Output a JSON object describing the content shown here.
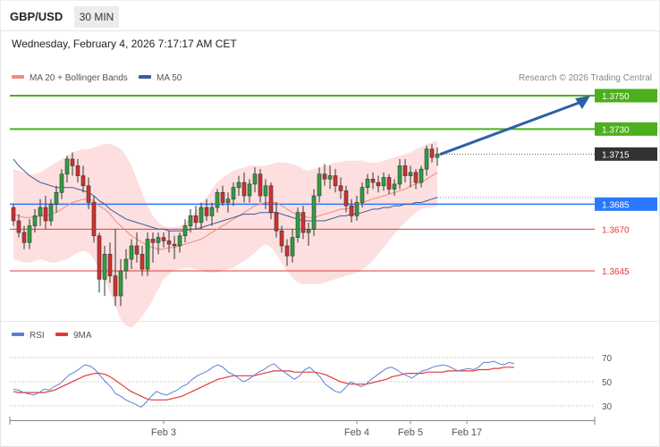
{
  "header": {
    "symbol": "GBP/USD",
    "interval": "30 MIN",
    "datetime": "Wednesday, February 4, 2026 7:17:17 AM CET",
    "credit": "Research © 2026 Trading Central"
  },
  "legend": {
    "main": [
      {
        "label": "MA 20 + Bollinger Bands",
        "color": "#f28b82"
      },
      {
        "label": "MA 50",
        "color": "#3a5d9c"
      }
    ],
    "rsi": [
      {
        "label": "RSI",
        "color": "#5b7fd6"
      },
      {
        "label": "9MA",
        "color": "#e53935"
      }
    ]
  },
  "chart_data": {
    "type": "candlestick",
    "ylim": [
      1.358,
      1.3775
    ],
    "levels": [
      {
        "label": "1.3750",
        "value": 1.375,
        "color": "#4caf1c",
        "kind": "resistance"
      },
      {
        "label": "1.3730",
        "value": 1.373,
        "color": "#4caf1c",
        "kind": "resistance"
      },
      {
        "label": "1.3715",
        "value": 1.3715,
        "color": "#333333",
        "kind": "last"
      },
      {
        "label": "1.3685",
        "value": 1.3685,
        "color": "#2979ff",
        "kind": "pivot"
      },
      {
        "label": "1.3670",
        "value": 1.367,
        "color": "#e53935",
        "kind": "support"
      },
      {
        "label": "1.3645",
        "value": 1.3645,
        "color": "#e53935",
        "kind": "support"
      }
    ],
    "forecast_arrow": {
      "from": 1.3715,
      "to": 1.375
    },
    "candles": [
      [
        1.3683,
        1.3685,
        1.3672,
        1.3675
      ],
      [
        1.3675,
        1.3679,
        1.3665,
        1.3668
      ],
      [
        1.3668,
        1.3672,
        1.3658,
        1.3662
      ],
      [
        1.3662,
        1.3676,
        1.3658,
        1.3672
      ],
      [
        1.3672,
        1.3682,
        1.3668,
        1.3678
      ],
      [
        1.3678,
        1.3688,
        1.3672,
        1.3683
      ],
      [
        1.3683,
        1.369,
        1.367,
        1.3675
      ],
      [
        1.3675,
        1.3688,
        1.3672,
        1.3685
      ],
      [
        1.3685,
        1.3696,
        1.368,
        1.3692
      ],
      [
        1.3692,
        1.3706,
        1.3688,
        1.3703
      ],
      [
        1.3703,
        1.3714,
        1.3698,
        1.3712
      ],
      [
        1.3712,
        1.3716,
        1.3702,
        1.3708
      ],
      [
        1.3708,
        1.3712,
        1.3698,
        1.3702
      ],
      [
        1.3702,
        1.3708,
        1.3692,
        1.3696
      ],
      [
        1.3696,
        1.3701,
        1.3682,
        1.3686
      ],
      [
        1.3686,
        1.369,
        1.3662,
        1.3666
      ],
      [
        1.3666,
        1.3668,
        1.3632,
        1.364
      ],
      [
        1.364,
        1.366,
        1.363,
        1.3655
      ],
      [
        1.3655,
        1.3662,
        1.3638,
        1.3642
      ],
      [
        1.3642,
        1.367,
        1.3624,
        1.363
      ],
      [
        1.363,
        1.3652,
        1.3624,
        1.3645
      ],
      [
        1.3645,
        1.3658,
        1.364,
        1.3652
      ],
      [
        1.3652,
        1.3664,
        1.3646,
        1.366
      ],
      [
        1.366,
        1.3668,
        1.365,
        1.3655
      ],
      [
        1.3655,
        1.366,
        1.3642,
        1.3646
      ],
      [
        1.3646,
        1.3668,
        1.3642,
        1.3664
      ],
      [
        1.3664,
        1.3668,
        1.365,
        1.3662
      ],
      [
        1.3662,
        1.3668,
        1.3655,
        1.3665
      ],
      [
        1.3665,
        1.3668,
        1.3659,
        1.3663
      ],
      [
        1.3663,
        1.3669,
        1.3656,
        1.3661
      ],
      [
        1.3661,
        1.3666,
        1.3652,
        1.366
      ],
      [
        1.366,
        1.3668,
        1.3656,
        1.3666
      ],
      [
        1.3666,
        1.3676,
        1.3662,
        1.3672
      ],
      [
        1.3672,
        1.3682,
        1.3668,
        1.3678
      ],
      [
        1.3678,
        1.3684,
        1.367,
        1.3674
      ],
      [
        1.3674,
        1.3686,
        1.367,
        1.3683
      ],
      [
        1.3683,
        1.3688,
        1.3675,
        1.3678
      ],
      [
        1.3678,
        1.3686,
        1.3672,
        1.3683
      ],
      [
        1.3683,
        1.3694,
        1.368,
        1.3692
      ],
      [
        1.3692,
        1.3696,
        1.3684,
        1.3686
      ],
      [
        1.3686,
        1.3692,
        1.368,
        1.3688
      ],
      [
        1.3688,
        1.3698,
        1.3684,
        1.3695
      ],
      [
        1.3695,
        1.3702,
        1.369,
        1.3698
      ],
      [
        1.3698,
        1.3704,
        1.3686,
        1.369
      ],
      [
        1.369,
        1.37,
        1.3686,
        1.3697
      ],
      [
        1.3697,
        1.3707,
        1.3692,
        1.3703
      ],
      [
        1.3703,
        1.3706,
        1.3686,
        1.369
      ],
      [
        1.369,
        1.37,
        1.3682,
        1.3696
      ],
      [
        1.3696,
        1.3698,
        1.3676,
        1.368
      ],
      [
        1.368,
        1.3686,
        1.3665,
        1.3669
      ],
      [
        1.3669,
        1.3672,
        1.3656,
        1.366
      ],
      [
        1.366,
        1.3664,
        1.3648,
        1.3654
      ],
      [
        1.3654,
        1.367,
        1.365,
        1.3665
      ],
      [
        1.3665,
        1.3683,
        1.3662,
        1.368
      ],
      [
        1.368,
        1.3684,
        1.3664,
        1.3668
      ],
      [
        1.3668,
        1.3674,
        1.366,
        1.367
      ],
      [
        1.367,
        1.3694,
        1.3666,
        1.369
      ],
      [
        1.369,
        1.3707,
        1.3686,
        1.3703
      ],
      [
        1.3703,
        1.3709,
        1.3696,
        1.37
      ],
      [
        1.37,
        1.3708,
        1.3694,
        1.3702
      ],
      [
        1.3702,
        1.3706,
        1.3692,
        1.3696
      ],
      [
        1.3696,
        1.3701,
        1.3688,
        1.3693
      ],
      [
        1.3693,
        1.3696,
        1.368,
        1.3684
      ],
      [
        1.3684,
        1.3688,
        1.3674,
        1.3678
      ],
      [
        1.3678,
        1.369,
        1.3675,
        1.3686
      ],
      [
        1.3686,
        1.3698,
        1.3683,
        1.3695
      ],
      [
        1.3695,
        1.3703,
        1.3691,
        1.37
      ],
      [
        1.37,
        1.3704,
        1.3694,
        1.3698
      ],
      [
        1.3698,
        1.3702,
        1.3692,
        1.3696
      ],
      [
        1.3696,
        1.3704,
        1.3693,
        1.3701
      ],
      [
        1.3701,
        1.3703,
        1.3691,
        1.3694
      ],
      [
        1.3694,
        1.37,
        1.369,
        1.3697
      ],
      [
        1.3697,
        1.3712,
        1.3694,
        1.3708
      ],
      [
        1.3708,
        1.3712,
        1.3698,
        1.3702
      ],
      [
        1.3702,
        1.3708,
        1.3695,
        1.3704
      ],
      [
        1.3704,
        1.3706,
        1.3694,
        1.3698
      ],
      [
        1.3698,
        1.3708,
        1.3695,
        1.3706
      ],
      [
        1.3706,
        1.372,
        1.3702,
        1.3718
      ],
      [
        1.3718,
        1.3721,
        1.371,
        1.3713
      ],
      [
        1.3713,
        1.3719,
        1.3708,
        1.3715
      ]
    ],
    "ma20": [
      1.3679,
      1.3678,
      1.3677,
      1.3677,
      1.3677,
      1.3678,
      1.3678,
      1.3679,
      1.368,
      1.3682,
      1.3684,
      1.3686,
      1.3687,
      1.3688,
      1.3688,
      1.3687,
      1.3684,
      1.3682,
      1.3679,
      1.3675,
      1.3672,
      1.3669,
      1.3666,
      1.3664,
      1.3662,
      1.366,
      1.3659,
      1.3658,
      1.3658,
      1.3659,
      1.3659,
      1.366,
      1.3661,
      1.3662,
      1.3663,
      1.3664,
      1.3666,
      1.3668,
      1.367,
      1.3672,
      1.3674,
      1.3676,
      1.3678,
      1.368,
      1.3682,
      1.3684,
      1.3685,
      1.3686,
      1.3686,
      1.3686,
      1.3684,
      1.3682,
      1.368,
      1.3679,
      1.3678,
      1.3677,
      1.3677,
      1.3678,
      1.3679,
      1.368,
      1.3681,
      1.3682,
      1.3682,
      1.3683,
      1.3684,
      1.3686,
      1.3687,
      1.3688,
      1.3689,
      1.369,
      1.3691,
      1.3692,
      1.3693,
      1.3694,
      1.3696,
      1.3697,
      1.3698,
      1.37,
      1.3702,
      1.3704
    ],
    "bb_upper": [
      1.3706,
      1.3705,
      1.3704,
      1.3703,
      1.3703,
      1.3704,
      1.3706,
      1.3708,
      1.371,
      1.3712,
      1.3714,
      1.3716,
      1.3717,
      1.3718,
      1.3718,
      1.3719,
      1.372,
      1.3721,
      1.3721,
      1.372,
      1.3718,
      1.3714,
      1.3708,
      1.37,
      1.3692,
      1.3684,
      1.3678,
      1.3674,
      1.3672,
      1.3671,
      1.3671,
      1.3672,
      1.3674,
      1.3677,
      1.3681,
      1.3685,
      1.3689,
      1.3694,
      1.3698,
      1.3701,
      1.3703,
      1.3705,
      1.3706,
      1.3707,
      1.3708,
      1.3708,
      1.3708,
      1.3708,
      1.3709,
      1.371,
      1.371,
      1.371,
      1.3709,
      1.3708,
      1.3706,
      1.3705,
      1.3706,
      1.3707,
      1.3708,
      1.3709,
      1.371,
      1.371,
      1.3711,
      1.3711,
      1.3711,
      1.3711,
      1.371,
      1.371,
      1.371,
      1.3711,
      1.3712,
      1.3713,
      1.3714,
      1.3715,
      1.3716,
      1.3718,
      1.3719,
      1.3721,
      1.3722,
      1.3723
    ],
    "bb_lower": [
      1.3652,
      1.3651,
      1.365,
      1.365,
      1.3651,
      1.3652,
      1.3651,
      1.365,
      1.365,
      1.3651,
      1.3652,
      1.3654,
      1.3656,
      1.3657,
      1.3656,
      1.3652,
      1.3646,
      1.364,
      1.3632,
      1.3624,
      1.3616,
      1.3612,
      1.3611,
      1.3614,
      1.3618,
      1.3622,
      1.3628,
      1.3634,
      1.364,
      1.3643,
      1.3645,
      1.3646,
      1.3647,
      1.3647,
      1.3646,
      1.3645,
      1.3644,
      1.3644,
      1.3644,
      1.3645,
      1.3646,
      1.3647,
      1.3649,
      1.3651,
      1.3653,
      1.3656,
      1.3659,
      1.3661,
      1.3659,
      1.3655,
      1.365,
      1.3645,
      1.3641,
      1.3638,
      1.3637,
      1.3637,
      1.3637,
      1.3637,
      1.3638,
      1.3639,
      1.364,
      1.3641,
      1.3642,
      1.3643,
      1.3644,
      1.3646,
      1.3648,
      1.3651,
      1.3655,
      1.3659,
      1.3663,
      1.3667,
      1.3671,
      1.3674,
      1.3677,
      1.368,
      1.3682,
      1.3683,
      1.3683,
      1.3684
    ],
    "ma50": [
      1.3712,
      1.3708,
      1.3705,
      1.3702,
      1.37,
      1.3698,
      1.3697,
      1.3696,
      1.3695,
      1.3695,
      1.3695,
      1.3695,
      1.3694,
      1.3693,
      1.3692,
      1.369,
      1.3687,
      1.3685,
      1.3682,
      1.368,
      1.3678,
      1.3676,
      1.3675,
      1.3674,
      1.3673,
      1.3672,
      1.3671,
      1.367,
      1.367,
      1.3669,
      1.3669,
      1.3669,
      1.3669,
      1.367,
      1.367,
      1.3671,
      1.3672,
      1.3673,
      1.3674,
      1.3675,
      1.3676,
      1.3677,
      1.3678,
      1.3679,
      1.3679,
      1.3679,
      1.368,
      1.368,
      1.368,
      1.368,
      1.3679,
      1.3678,
      1.3677,
      1.3676,
      1.3675,
      1.3675,
      1.3675,
      1.3675,
      1.3675,
      1.3676,
      1.3677,
      1.3678,
      1.3678,
      1.3679,
      1.3679,
      1.368,
      1.3681,
      1.3682,
      1.3682,
      1.3683,
      1.3683,
      1.3684,
      1.3684,
      1.3685,
      1.3685,
      1.3686,
      1.3686,
      1.3687,
      1.3688,
      1.3689
    ],
    "xaxis": [
      {
        "label": "Feb 3",
        "index": 28
      },
      {
        "label": "Feb 4",
        "index": 64
      },
      {
        "label": "Feb 5",
        "index": 74
      },
      {
        "label": "Feb 17",
        "index": 84
      }
    ],
    "rsi": {
      "ylim": [
        20,
        80
      ],
      "ticks": [
        70,
        50,
        30
      ],
      "rsi": [
        44,
        43,
        41,
        40,
        39,
        41,
        44,
        43,
        46,
        48,
        52,
        56,
        58,
        61,
        64,
        63,
        60,
        55,
        50,
        46,
        40,
        38,
        35,
        33,
        31,
        29,
        33,
        38,
        42,
        40,
        39,
        41,
        43,
        46,
        48,
        52,
        55,
        57,
        59,
        62,
        64,
        62,
        58,
        56,
        53,
        50,
        52,
        55,
        58,
        60,
        63,
        65,
        61,
        58,
        55,
        52,
        55,
        60,
        62,
        58,
        54,
        48,
        45,
        42,
        41,
        45,
        50,
        48,
        46,
        48,
        52,
        55,
        58,
        61,
        62,
        60,
        57,
        55,
        53,
        56,
        59,
        60,
        62,
        63,
        64,
        63,
        61,
        59,
        60,
        61,
        60,
        62,
        66,
        66,
        67,
        65,
        64,
        66,
        65
      ],
      "ma9": [
        42,
        41,
        41,
        41,
        41,
        41,
        41,
        42,
        43,
        45,
        47,
        49,
        51,
        53,
        55,
        56,
        57,
        57,
        56,
        54,
        51,
        48,
        45,
        42,
        40,
        38,
        36,
        35,
        35,
        35,
        35,
        36,
        37,
        38,
        40,
        42,
        44,
        46,
        48,
        50,
        52,
        53,
        54,
        55,
        55,
        55,
        55,
        55,
        56,
        57,
        58,
        59,
        59,
        59,
        59,
        58,
        58,
        58,
        58,
        58,
        57,
        56,
        54,
        52,
        50,
        49,
        48,
        48,
        48,
        48,
        49,
        50,
        51,
        52,
        54,
        55,
        56,
        57,
        57,
        57,
        57,
        58,
        58,
        58,
        58,
        59,
        59,
        59,
        59,
        59,
        59,
        60,
        60,
        60,
        61,
        61,
        62,
        62,
        62
      ]
    }
  }
}
